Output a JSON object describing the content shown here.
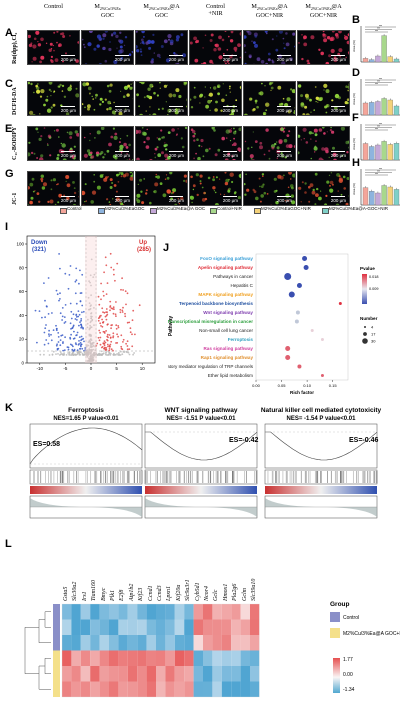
{
  "panel_letters": [
    "A",
    "B",
    "C",
    "D",
    "E",
    "F",
    "G",
    "H",
    "I",
    "J",
    "K",
    "L"
  ],
  "microscopy": {
    "columns": [
      {
        "main": "Control",
        "sub": ""
      },
      {
        "main": "M",
        "sub": "",
        "line2": "GOC",
        "subscript": "2%Cu/3%Ea"
      },
      {
        "main": "M",
        "sub": "@A",
        "line2": "GOC",
        "subscript": "2%Cu/3%Ea"
      },
      {
        "main": "Control",
        "sub": "",
        "line2": "+NIR"
      },
      {
        "main": "M",
        "sub": "@A",
        "line2": "GOC+NIR",
        "subscript": "2%Cu/3%Ea"
      },
      {
        "main": "M",
        "sub": "@A",
        "line2": "GOC+NIR",
        "subscript": "2%Cu/3%Ea"
      }
    ],
    "rows": [
      "Ru(dpp)₃Cl₂",
      "DCFH-DA",
      "C₁₁-BODIPY",
      "JC-1"
    ],
    "scale_label": "200 μm",
    "colors": [
      "#e0335a",
      "#8fd13a",
      "#d23a6a",
      "#e05030"
    ]
  },
  "bar_panels": {
    "ylabel": "Area (%)",
    "stars": "***",
    "colors": [
      "#f4a59a",
      "#8eb4de",
      "#c4a8d8",
      "#a8d88c",
      "#f4d27a",
      "#7fd0c8"
    ],
    "values": [
      [
        12,
        8,
        20,
        88,
        18,
        10
      ],
      [
        40,
        42,
        45,
        55,
        50,
        30
      ],
      [
        55,
        45,
        50,
        62,
        52,
        56
      ],
      [
        58,
        46,
        40,
        65,
        60,
        52
      ]
    ]
  },
  "legend": {
    "items": [
      "Control",
      "M2%Cu/3%EaGOC",
      "M2%Cu/3%Ea@A GOC",
      "Control+NIR",
      "M2%Cu/3%EaGOC+NIR",
      "M2%Cu/3%Ea@A-GOC+NIR"
    ],
    "colors": [
      "#f4a59a",
      "#8eb4de",
      "#c4a8d8",
      "#a8d88c",
      "#f4d27a",
      "#7fd0c8"
    ]
  },
  "volcano": {
    "down_label": "Down",
    "down_count": "(321)",
    "up_label": "Up",
    "up_count": "(285)",
    "y_ticks": [
      "0",
      "20",
      "40",
      "60",
      "80",
      "100"
    ],
    "x_ticks": [
      "-10",
      "-5",
      "0",
      "5",
      "10"
    ]
  },
  "enrichment": {
    "ylabel": "Pathway",
    "xlabel": "Rich factor",
    "x_ticks": [
      "0.00",
      "0.05",
      "0.10",
      "0.15"
    ],
    "pathways": [
      {
        "name": "FoxO signaling pathway",
        "color": "#3aa0d8",
        "x": 0.095,
        "size": 2.5,
        "dot": "#3a4fb0"
      },
      {
        "name": "Apelin signaling pathway",
        "color": "#e0303a",
        "x": 0.098,
        "size": 2.5,
        "dot": "#3a4fb0"
      },
      {
        "name": "Pathways in cancer",
        "color": "#222",
        "x": 0.062,
        "size": 3.5,
        "dot": "#3a4fb0"
      },
      {
        "name": "Hepatitis C",
        "color": "#222",
        "x": 0.085,
        "size": 2.5,
        "dot": "#3a4fb0"
      },
      {
        "name": "MAPK signaling pathway",
        "color": "#f0a020",
        "x": 0.07,
        "size": 3,
        "dot": "#3a4fb0"
      },
      {
        "name": "Terpenoid backbone biosynthesis",
        "color": "#2050a0",
        "x": 0.165,
        "size": 1.5,
        "dot": "#e03040"
      },
      {
        "name": "Wnt signaling pathway",
        "color": "#8040b0",
        "x": 0.082,
        "size": 2,
        "dot": "#c0c8d8"
      },
      {
        "name": "Transcriptional misregulation in cancer",
        "color": "#30a040",
        "x": 0.08,
        "size": 2,
        "dot": "#c0c8d8"
      },
      {
        "name": "Non-small cell lung cancer",
        "color": "#222",
        "x": 0.11,
        "size": 1.5,
        "dot": "#e8d0d8"
      },
      {
        "name": "Ferroptosis",
        "color": "#30a0c0",
        "x": 0.13,
        "size": 1.5,
        "dot": "#e8d0d8"
      },
      {
        "name": "Ras signaling pathway",
        "color": "#d040a0",
        "x": 0.062,
        "size": 2.5,
        "dot": "#e06070"
      },
      {
        "name": "Rap1 signaling pathway",
        "color": "#e09030",
        "x": 0.062,
        "size": 2.5,
        "dot": "#e06070"
      },
      {
        "name": "Inflammatory mediator regulation of TRP channels",
        "color": "#222",
        "x": 0.085,
        "size": 2,
        "dot": "#e06070"
      },
      {
        "name": "Ether lipid metabolism",
        "color": "#222",
        "x": 0.13,
        "size": 1.5,
        "dot": "#e06070"
      }
    ],
    "pvalue_title": "Pvalue",
    "pvalue_ticks": [
      "0.018",
      "0.009"
    ],
    "number_title": "Number",
    "number_items": [
      "4",
      "17",
      "30"
    ]
  },
  "gsea": [
    {
      "title": "Ferroptosis",
      "nes": "NES=1.65 P value<0.01",
      "es": "ES=0.58",
      "up": true
    },
    {
      "title": "WNT signaling pathway",
      "nes": "NES= -1.51 P value<0.01",
      "es": "ES=-0.42",
      "up": false
    },
    {
      "title": "Natural killer cell mediated cytotoxicity",
      "nes": "NES= -1.54 P value<0.01",
      "es": "ES=-0.46",
      "up": false
    }
  ],
  "heatmap": {
    "genes": [
      "Gsta5",
      "Slc30a2",
      "Irs1",
      "Tiam160",
      "Bmyc",
      "Plk1",
      "E2f8",
      "Atp1b2",
      "Kif23",
      "Ccnd1",
      "Ccnd3",
      "Lpxn1",
      "Kif20a",
      "Slc9a3r1",
      "Cyb5d1",
      "Ncor4",
      "Gclc",
      "Hmox1",
      "Pla2g6",
      "Gclm",
      "Slc39a10"
    ],
    "group_title": "Group",
    "group_items": [
      "Control",
      "M2%Cu/3%Ea@A GOC+NIR"
    ],
    "group_colors": [
      "#8a8fc8",
      "#f4e08a"
    ],
    "scale_ticks": [
      "1.77",
      "0.00",
      "-1.34"
    ]
  }
}
